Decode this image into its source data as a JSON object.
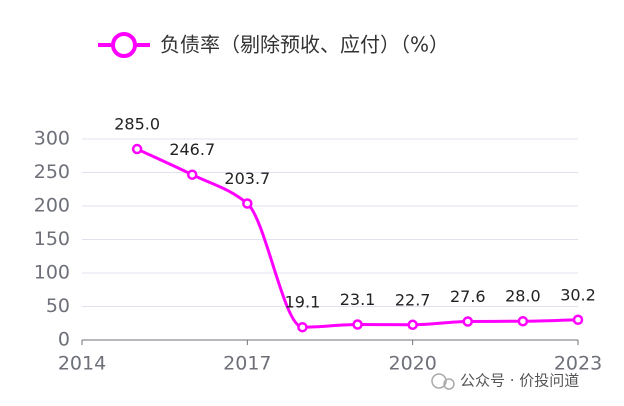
{
  "chart_data": {
    "type": "line",
    "legend_label": "负债率（剔除预收、应付）（%）",
    "x": [
      2015,
      2016,
      2017,
      2018,
      2019,
      2020,
      2021,
      2022,
      2023
    ],
    "series": [
      {
        "name": "负债率（剔除预收、应付）（%）",
        "color": "#ff00ff",
        "values": [
          285.0,
          246.7,
          203.7,
          19.1,
          23.1,
          22.7,
          27.6,
          28.0,
          30.2
        ],
        "value_labels": [
          "285.0",
          "246.7",
          "203.7",
          "19.1",
          "23.1",
          "22.7",
          "27.6",
          "28.0",
          "30.2"
        ]
      }
    ],
    "xlim": [
      2014,
      2023
    ],
    "xticks": [
      2014,
      2017,
      2020,
      2023
    ],
    "ylim": [
      0,
      300
    ],
    "yticks": [
      0,
      50,
      100,
      150,
      200,
      250,
      300
    ],
    "grid": true,
    "smooth": true,
    "watermark": "公众号 · 价投问道"
  }
}
